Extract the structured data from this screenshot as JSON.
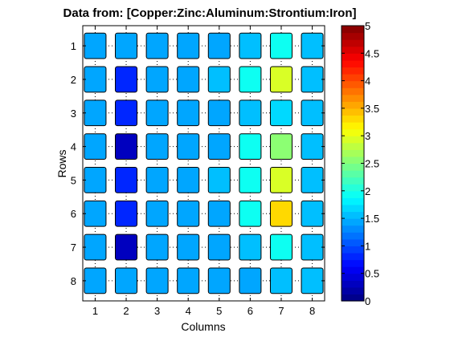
{
  "chart_data": {
    "type": "heatmap",
    "title": "Data from: [Copper:Zinc:Aluminum:Strontium:Iron]",
    "xlabel": "Columns",
    "ylabel": "Rows",
    "columns": [
      "1",
      "2",
      "3",
      "4",
      "5",
      "6",
      "7",
      "8"
    ],
    "rows": [
      "1",
      "2",
      "3",
      "4",
      "5",
      "6",
      "7",
      "8"
    ],
    "values": [
      [
        1.4,
        1.4,
        1.4,
        1.4,
        1.4,
        1.6,
        1.9,
        1.6
      ],
      [
        1.4,
        0.8,
        1.4,
        1.4,
        1.6,
        1.9,
        2.9,
        1.6
      ],
      [
        1.4,
        0.8,
        1.4,
        1.4,
        1.4,
        1.6,
        1.7,
        1.6
      ],
      [
        1.4,
        0.3,
        1.4,
        1.4,
        1.4,
        1.9,
        2.6,
        1.6
      ],
      [
        1.4,
        0.8,
        1.4,
        1.4,
        1.6,
        1.9,
        2.9,
        1.6
      ],
      [
        1.4,
        0.8,
        1.4,
        1.4,
        1.4,
        1.9,
        3.3,
        1.6
      ],
      [
        1.4,
        0.3,
        1.4,
        1.4,
        1.4,
        1.6,
        1.9,
        1.6
      ],
      [
        1.4,
        1.4,
        1.4,
        1.4,
        1.4,
        1.4,
        1.6,
        1.6
      ]
    ],
    "colorbar": {
      "range": [
        0,
        5
      ],
      "levels": 40,
      "ticks": [
        "0",
        "0.5",
        "1",
        "1.5",
        "2",
        "2.5",
        "3",
        "3.5",
        "4",
        "4.5",
        "5"
      ],
      "colormap": "jet"
    },
    "grid": true,
    "cell_border_color": "#000000"
  }
}
